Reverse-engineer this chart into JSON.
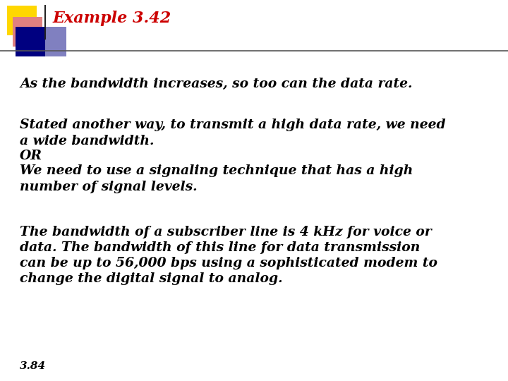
{
  "title": "Example 3.42",
  "title_color": "#CC0000",
  "bg_color": "#FFFFFF",
  "line1": "As the bandwidth increases, so too can the data rate.",
  "line2": "Stated another way, to transmit a high data rate, we need",
  "line3": "a wide bandwidth.",
  "line4": "OR",
  "line5": "We need to use a signaling technique that has a high",
  "line6": "number of signal levels.",
  "line7": "The bandwidth of a subscriber line is 4 kHz for voice or",
  "line8": "data. The bandwidth of this line for data transmission",
  "line9": "can be up to 56,000 bps using a sophisticated modem to",
  "line10": "change the digital signal to analog.",
  "footer": "3.84",
  "square_yellow": "#FFD700",
  "square_red": "#C00000",
  "square_blue": "#000080",
  "square_pink": "#E08080",
  "square_blue_light": "#8080C0",
  "text_color": "#000000",
  "title_fontsize": 16,
  "body_fontsize": 13.5,
  "footer_fontsize": 11
}
